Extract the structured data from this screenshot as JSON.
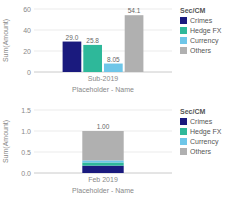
{
  "chart_data": [
    {
      "type": "bar",
      "xlabel": "Placeholder - Name",
      "ylabel": "Sum(Amount)",
      "categories": [
        "Sub-2019"
      ],
      "series": [
        {
          "name": "Crimes",
          "color": "#1a1a7e",
          "values": [
            29.0
          ],
          "value_labels": [
            "29.0"
          ]
        },
        {
          "name": "Hedge FX",
          "color": "#2eb89a",
          "values": [
            25.8
          ],
          "value_labels": [
            "25.8"
          ]
        },
        {
          "name": "Currency",
          "color": "#6ec6e8",
          "values": [
            8.05
          ],
          "value_labels": [
            "8.05"
          ]
        },
        {
          "name": "Others",
          "color": "#b0b0b0",
          "values": [
            54.1
          ],
          "value_labels": [
            "54.1"
          ]
        }
      ],
      "ylim": [
        0,
        60
      ],
      "yticks": [
        0,
        20,
        40,
        60
      ],
      "grid": true,
      "legend": "right",
      "legend_title": "Sec/CM",
      "stacked": false,
      "data_labels": true
    },
    {
      "type": "bar",
      "xlabel": "Placeholder - Name",
      "ylabel": "Sum(Amount)",
      "categories": [
        "Feb 2019"
      ],
      "series": [
        {
          "name": "Crimes",
          "color": "#1a1a7e",
          "values": [
            0.175
          ]
        },
        {
          "name": "Hedge FX",
          "color": "#2eb89a",
          "values": [
            0.075
          ]
        },
        {
          "name": "Currency",
          "color": "#6ec6e8",
          "values": [
            0.05
          ]
        },
        {
          "name": "Others",
          "color": "#b0b0b0",
          "values": [
            0.7
          ]
        }
      ],
      "ylim": [
        0,
        1.5
      ],
      "yticks": [
        {
          "value": 0,
          "label": "0.0"
        },
        0.5,
        {
          "value": 1,
          "label": "1.0"
        },
        1.5
      ],
      "annotations": [
        {
          "text": "1.00",
          "x": "Feb 2019",
          "y": 1.0
        }
      ],
      "grid": true,
      "legend": "right",
      "legend_title": "Sec/CM",
      "stacked": true
    }
  ]
}
